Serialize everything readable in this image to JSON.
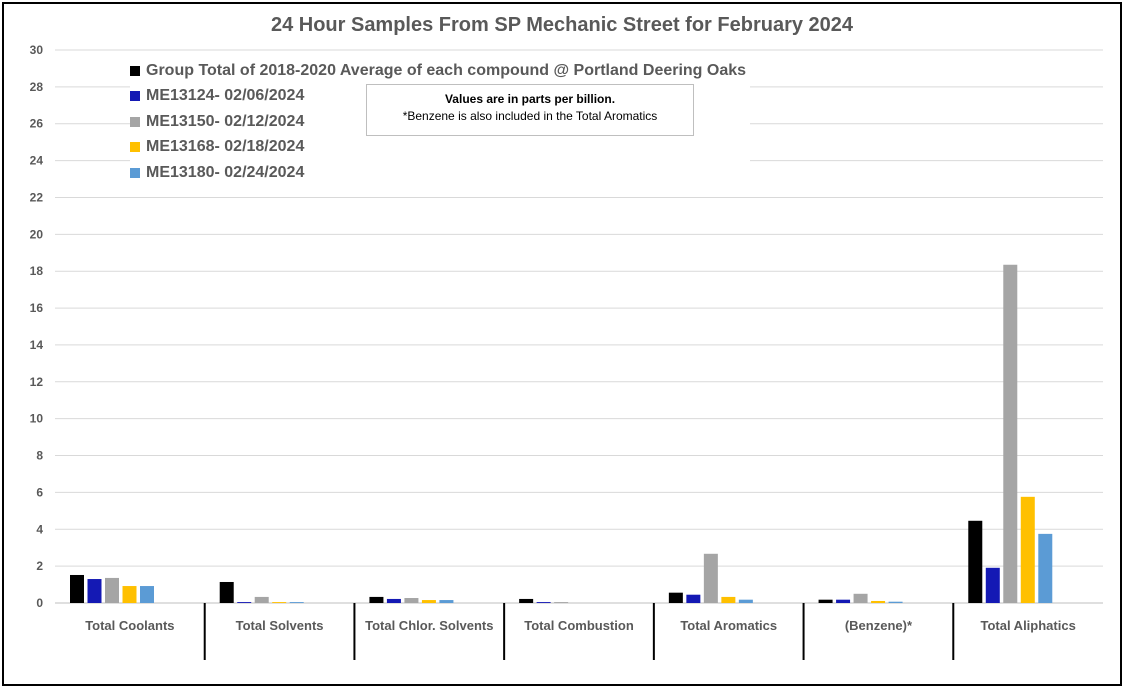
{
  "chart_data": {
    "type": "bar",
    "title": "24 Hour Samples From SP Mechanic Street for February 2024",
    "categories": [
      "Total Coolants",
      "Total Solvents",
      "Total Chlor. Solvents",
      "Total Combustion",
      "Total Aromatics",
      "(Benzene)*",
      "Total Aliphatics"
    ],
    "ylim": [
      0,
      30
    ],
    "yticks": [
      0,
      2,
      4,
      6,
      8,
      10,
      12,
      14,
      16,
      18,
      20,
      22,
      24,
      26,
      28,
      30
    ],
    "grid": true,
    "legend_position": "top-left",
    "series": [
      {
        "name": "Group Total of 2018-2020 Average of each compound @ Portland Deering Oaks",
        "color": "#000000",
        "values": [
          1.52,
          1.14,
          0.33,
          0.22,
          0.56,
          0.18,
          4.46
        ]
      },
      {
        "name": "ME13124- 02/06/2024",
        "color": "#1419B4",
        "values": [
          1.3,
          0.05,
          0.22,
          0.05,
          0.45,
          0.18,
          1.91
        ]
      },
      {
        "name": "ME13150- 02/12/2024",
        "color": "#A5A5A5",
        "values": [
          1.36,
          0.33,
          0.27,
          0.05,
          2.67,
          0.5,
          18.35
        ]
      },
      {
        "name": "ME13168- 02/18/2024",
        "color": "#FFC000",
        "values": [
          0.92,
          0.05,
          0.16,
          0.0,
          0.33,
          0.11,
          5.76
        ]
      },
      {
        "name": "ME13180- 02/24/2024",
        "color": "#5B9BD5",
        "values": [
          0.92,
          0.05,
          0.16,
          0.0,
          0.18,
          0.07,
          3.75
        ]
      }
    ],
    "annotation": {
      "line1": "Values are in parts per billion.",
      "line2": "*Benzene is also included in the Total Aromatics"
    }
  }
}
